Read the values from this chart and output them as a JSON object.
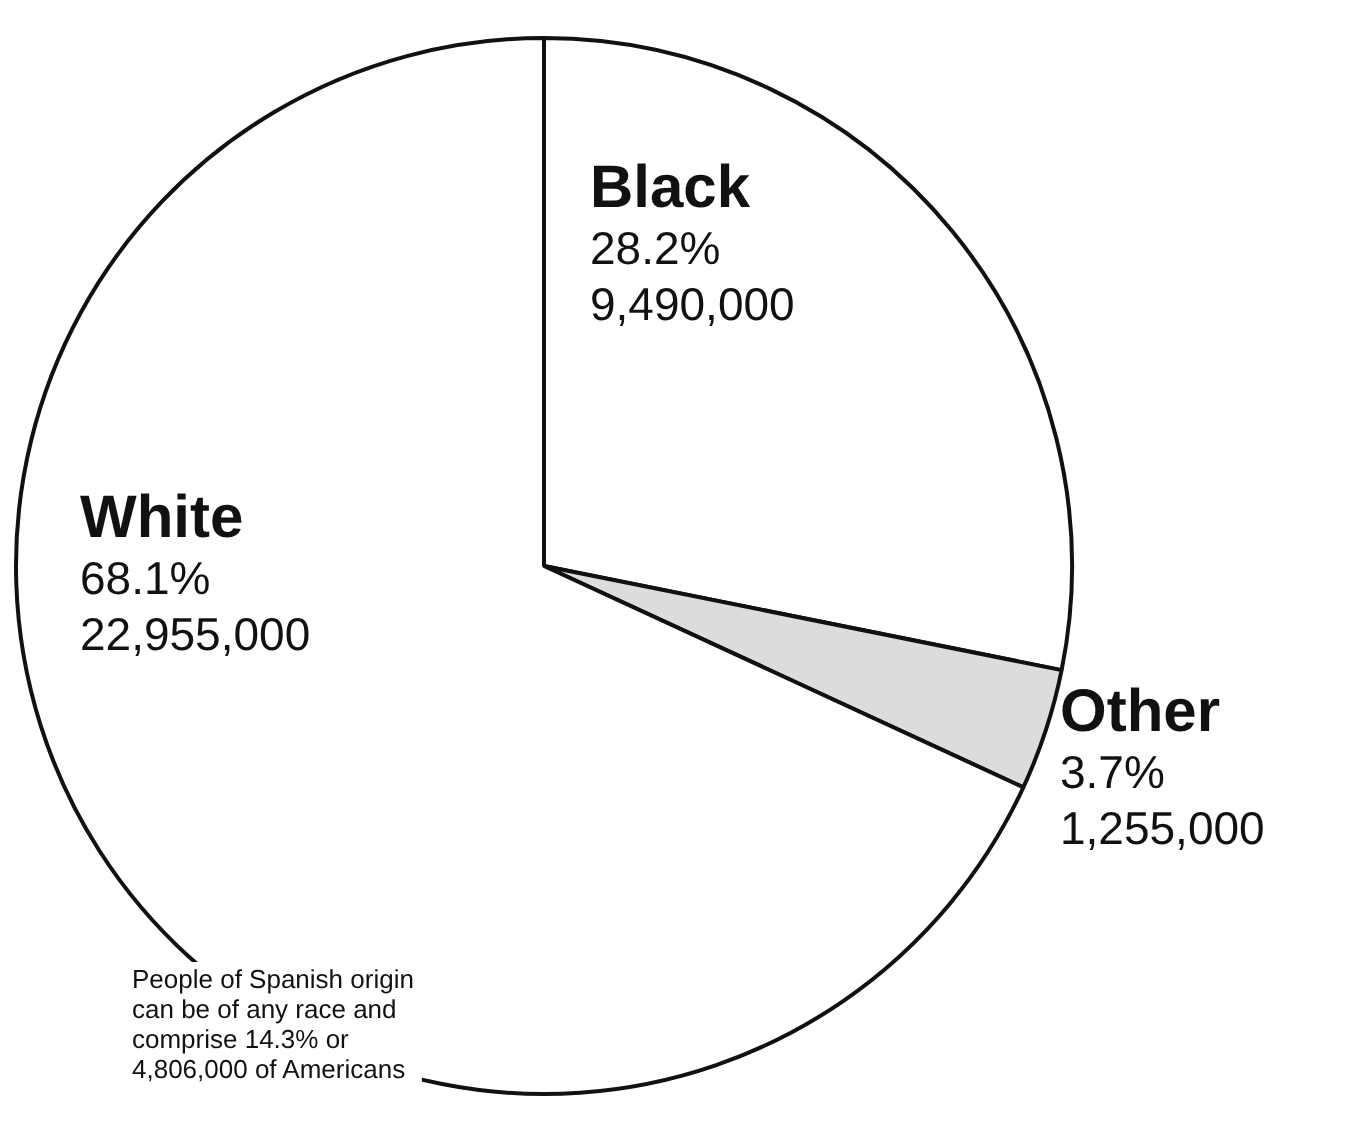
{
  "chart_data": {
    "type": "pie",
    "categories": [
      "Black",
      "Other",
      "White"
    ],
    "values": [
      9490000,
      1255000,
      22955000
    ],
    "value_labels": [
      "28.2%\n9,490,000",
      "3.7%\n1,255,000",
      "68.1%\n22,955,000"
    ],
    "colors": [
      "#ffffff",
      "#dcdcdc",
      "#ffffff"
    ],
    "legend": false,
    "annotations": [
      "People of Spanish origin\ncan be of any race and\ncomprise 14.3% or\n4,806,000 of Americans"
    ]
  }
}
